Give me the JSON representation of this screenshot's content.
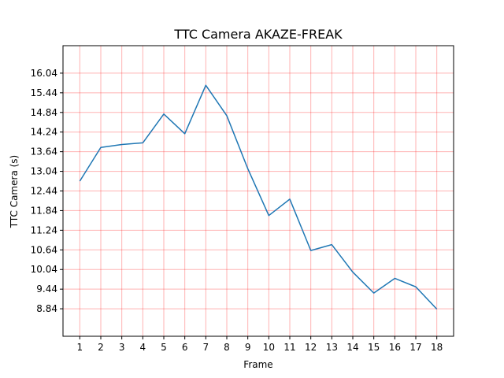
{
  "chart_data": {
    "type": "line",
    "title": "TTC Camera AKAZE-FREAK",
    "xlabel": "Frame",
    "ylabel": "TTC Camera (s)",
    "x": [
      1,
      2,
      3,
      4,
      5,
      6,
      7,
      8,
      9,
      10,
      11,
      12,
      13,
      14,
      15,
      16,
      17,
      18
    ],
    "y": [
      12.74,
      13.77,
      13.86,
      13.91,
      14.79,
      14.19,
      15.67,
      14.74,
      13.12,
      11.69,
      12.19,
      10.62,
      10.8,
      9.96,
      9.32,
      9.77,
      9.51,
      8.83
    ],
    "xticks": [
      "1",
      "2",
      "3",
      "4",
      "5",
      "6",
      "7",
      "8",
      "9",
      "10",
      "11",
      "12",
      "13",
      "14",
      "15",
      "16",
      "17",
      "18"
    ],
    "yticks": [
      "8.84",
      "9.44",
      "10.04",
      "10.64",
      "11.24",
      "11.84",
      "12.44",
      "13.04",
      "13.64",
      "14.24",
      "14.84",
      "15.44",
      "16.04"
    ],
    "xlim": [
      0.2,
      18.8
    ],
    "ylim": [
      8.0,
      16.88
    ],
    "grid": true,
    "line_color": "#1f77b4",
    "grid_color": "#ff0000"
  }
}
